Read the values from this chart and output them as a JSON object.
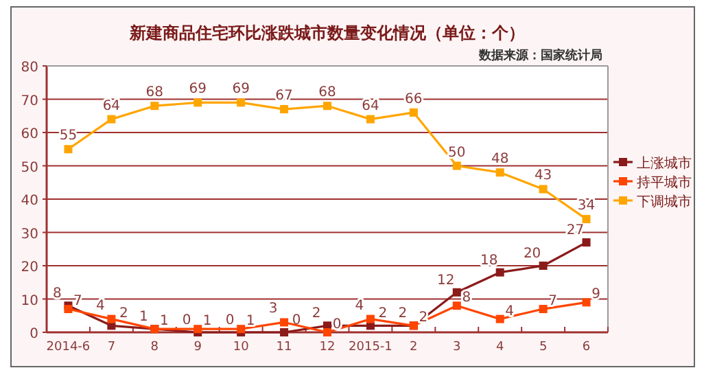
{
  "chart_data": {
    "type": "line",
    "title": "新建商品住宅环比涨跌城市数量变化情况（单位：个）",
    "subtitle": "数据来源：国家统计局",
    "categories": [
      "2014-6",
      "7",
      "8",
      "9",
      "10",
      "11",
      "12",
      "2015-1",
      "2",
      "3",
      "4",
      "5",
      "6"
    ],
    "series": [
      {
        "name": "上涨城市",
        "color": "#8b1a1a",
        "values": [
          8,
          2,
          1,
          0,
          0,
          0,
          2,
          2,
          2,
          12,
          18,
          20,
          27
        ]
      },
      {
        "name": "持平城市",
        "color": "#ff4500",
        "values": [
          7,
          4,
          1,
          1,
          1,
          3,
          0,
          4,
          2,
          8,
          4,
          7,
          9
        ]
      },
      {
        "name": "下调城市",
        "color": "#ffa500",
        "values": [
          55,
          64,
          68,
          69,
          69,
          67,
          68,
          64,
          66,
          50,
          48,
          43,
          34
        ]
      }
    ],
    "ylim": [
      0,
      80
    ],
    "yticks": [
      0,
      10,
      20,
      30,
      40,
      50,
      60,
      70,
      80
    ],
    "grid": "y",
    "legend": "right",
    "marker": "square",
    "data_labels": true
  }
}
